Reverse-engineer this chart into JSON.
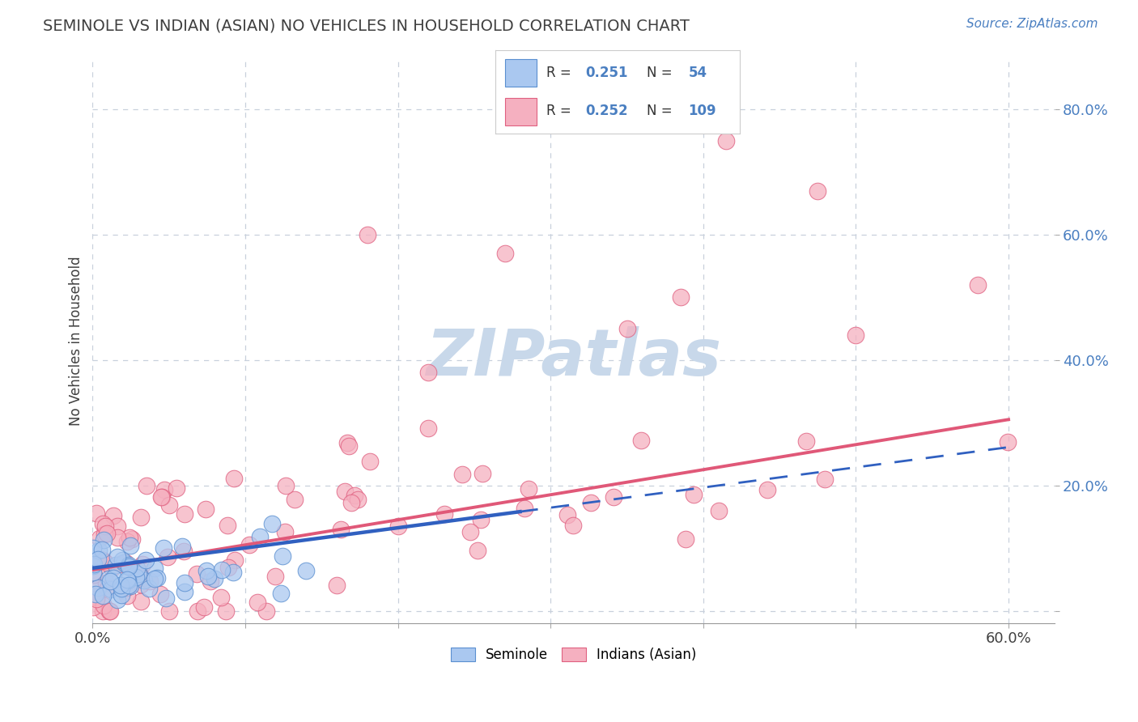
{
  "title": "SEMINOLE VS INDIAN (ASIAN) NO VEHICLES IN HOUSEHOLD CORRELATION CHART",
  "source_text": "Source: ZipAtlas.com",
  "ylabel": "No Vehicles in Household",
  "xlim": [
    0.0,
    0.63
  ],
  "ylim": [
    -0.02,
    0.88
  ],
  "xtick_vals": [
    0.0,
    0.1,
    0.2,
    0.3,
    0.4,
    0.5,
    0.6
  ],
  "ytick_vals": [
    0.0,
    0.2,
    0.4,
    0.6,
    0.8
  ],
  "ytick_labels": [
    "",
    "20.0%",
    "40.0%",
    "60.0%",
    "80.0%"
  ],
  "xtick_labels": [
    "0.0%",
    "",
    "",
    "",
    "",
    "",
    "60.0%"
  ],
  "seminole_color": "#aac8f0",
  "seminole_edge": "#5a8fd0",
  "indian_color": "#f5b0c0",
  "indian_edge": "#e06080",
  "trend_seminole_color": "#3060c0",
  "trend_indian_color": "#e05878",
  "watermark": "ZIPatlas",
  "watermark_color": "#c8d8ea",
  "background_color": "#ffffff",
  "grid_color": "#c8d0dc",
  "ytick_color": "#4a7fc1",
  "title_color": "#404040",
  "source_color": "#4a7fc1"
}
